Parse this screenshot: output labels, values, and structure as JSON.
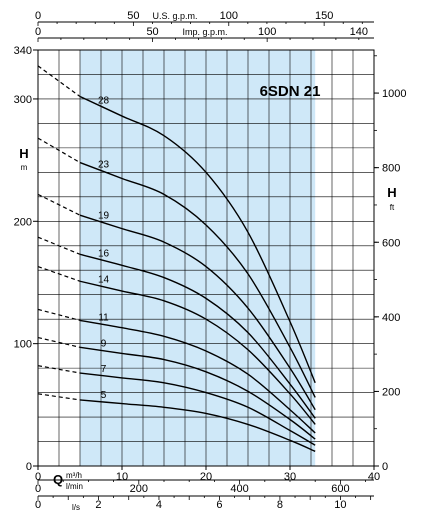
{
  "chart_data": {
    "type": "line",
    "title": "6SDN 21",
    "xlabel": "Q",
    "ylabel": "H",
    "y_left_unit": "m",
    "y_right_unit": "ft",
    "x_main_unit": "m³/h",
    "x_lmin_unit": "l/min",
    "x_ls_unit": "l/s",
    "x_top_usgpm_label": "U.S. g.p.m.",
    "x_top_impgpm_label": "Imp. g.p.m.",
    "xlim": [
      0,
      40
    ],
    "ylim": [
      0,
      340
    ],
    "y_right_lim": [
      0,
      1115
    ],
    "operating_range": [
      5,
      33
    ],
    "grid": true,
    "tick_labels": {
      "x_main": [
        "0",
        "10",
        "20",
        "30",
        "40"
      ],
      "x_lmin": [
        "0",
        "200",
        "400",
        "600"
      ],
      "x_ls": [
        "0",
        "2",
        "4",
        "6",
        "8",
        "10"
      ],
      "x_usgpm": [
        "0",
        "50",
        "100",
        "150"
      ],
      "x_impgpm": [
        "0",
        "50",
        "100",
        "140"
      ],
      "y_left": [
        "0",
        "100",
        "200",
        "300",
        "340"
      ],
      "y_right": [
        "0",
        "200",
        "400",
        "600",
        "800",
        "1000"
      ]
    },
    "x": [
      0,
      5,
      10,
      15,
      20,
      25,
      30,
      33
    ],
    "series": [
      {
        "name": "5",
        "values": [
          59,
          54,
          51,
          48,
          43,
          34,
          21,
          12
        ]
      },
      {
        "name": "7",
        "values": [
          82,
          76,
          72,
          68,
          60,
          48,
          29,
          17
        ]
      },
      {
        "name": "9",
        "values": [
          105,
          97,
          92,
          87,
          77,
          61,
          38,
          22
        ]
      },
      {
        "name": "11",
        "values": [
          128,
          119,
          113,
          106,
          94,
          75,
          46,
          27
        ]
      },
      {
        "name": "14",
        "values": [
          163,
          151,
          143,
          135,
          120,
          95,
          59,
          34
        ]
      },
      {
        "name": "16",
        "values": [
          187,
          173,
          164,
          154,
          137,
          109,
          67,
          39
        ]
      },
      {
        "name": "19",
        "values": [
          222,
          205,
          194,
          183,
          163,
          129,
          80,
          46
        ]
      },
      {
        "name": "23",
        "values": [
          268,
          248,
          235,
          222,
          197,
          157,
          97,
          56
        ]
      },
      {
        "name": "28",
        "values": [
          327,
          302,
          286,
          270,
          240,
          191,
          118,
          68
        ]
      }
    ]
  }
}
